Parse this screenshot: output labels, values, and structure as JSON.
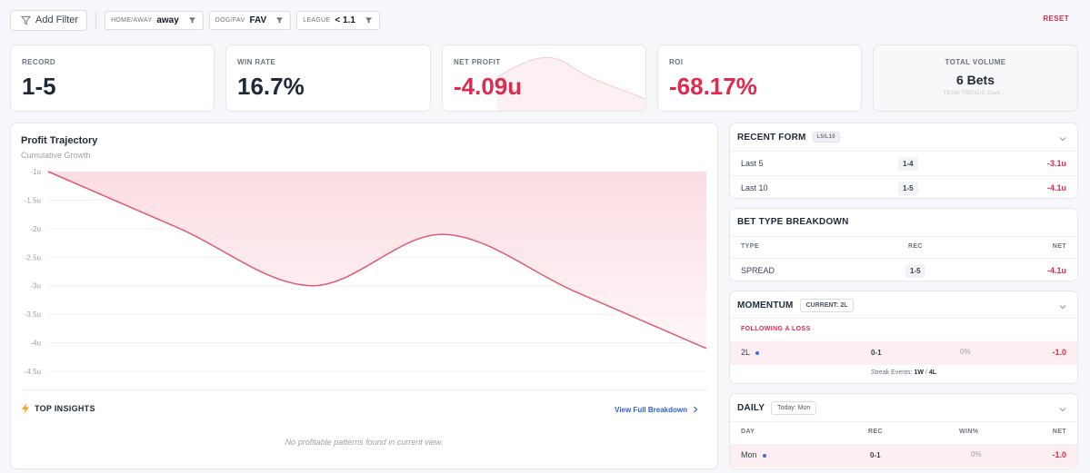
{
  "filters": {
    "add_label": "Add Filter",
    "chips": [
      {
        "key": "HOME/AWAY",
        "value": "away"
      },
      {
        "key": "DOG/FAV",
        "value": "FAV"
      },
      {
        "key": "LEAGUE",
        "value": "< 1.1"
      }
    ],
    "reset_label": "RESET"
  },
  "stats": {
    "record": {
      "label": "RECORD",
      "value": "1-5"
    },
    "win_rate": {
      "label": "WIN RATE",
      "value": "16.7%"
    },
    "net_profit": {
      "label": "NET PROFIT",
      "value": "-4.09u"
    },
    "roi": {
      "label": "ROI",
      "value": "-68.17%"
    },
    "volume": {
      "label": "TOTAL VOLUME",
      "value": "6 Bets",
      "sub": "TEAM TRENDS Cavs ..."
    }
  },
  "chart": {
    "title": "Profit Trajectory",
    "subtitle": "Cumulative Growth"
  },
  "chart_data": {
    "type": "area",
    "title": "Profit Trajectory",
    "subtitle": "Cumulative Growth",
    "y_ticks": [
      "-1u",
      "-1.5u",
      "-2u",
      "-2.5u",
      "-3u",
      "-3.5u",
      "-4u",
      "-4.5u"
    ],
    "ylim": [
      -4.5,
      -1
    ],
    "x": [
      0,
      1,
      2,
      3,
      4,
      5
    ],
    "values": [
      -1.0,
      -2.0,
      -3.0,
      -2.1,
      -3.1,
      -4.1
    ],
    "grid": true,
    "colors": {
      "line": "#e05a72",
      "fill": "#fbdde3"
    }
  },
  "insights": {
    "title": "TOP INSIGHTS",
    "link": "View Full Breakdown",
    "empty": "No profitable patterns found in current view."
  },
  "recent_form": {
    "title": "RECENT FORM",
    "badge": "L5/L10",
    "rows": [
      {
        "label": "Last 5",
        "record": "1-4",
        "net": "-3.1u"
      },
      {
        "label": "Last 10",
        "record": "1-5",
        "net": "-4.1u"
      }
    ]
  },
  "bet_type": {
    "title": "BET TYPE BREAKDOWN",
    "headers": {
      "type": "TYPE",
      "rec": "REC",
      "net": "NET"
    },
    "rows": [
      {
        "type": "SPREAD",
        "rec": "1-5",
        "net": "-4.1u"
      }
    ]
  },
  "momentum": {
    "title": "MOMENTUM",
    "badge": "CURRENT: 2L",
    "section": "FOLLOWING A LOSS",
    "row": {
      "label": "2L",
      "rec": "0-1",
      "pct": "0%",
      "net": "-1.0"
    },
    "streak_label": "Streak Events:",
    "streak_w": "1W",
    "streak_sep": "/",
    "streak_l": "4L"
  },
  "daily": {
    "title": "DAILY",
    "badge": "Today: Mon",
    "headers": {
      "day": "DAY",
      "rec": "REC",
      "win": "WIN%",
      "net": "NET"
    },
    "row": {
      "day": "Mon",
      "rec": "0-1",
      "win": "0%",
      "net": "-1.0"
    }
  },
  "colors": {
    "accent_red": "#e0294e",
    "link_blue": "#2f5fd1",
    "dot_blue": "#3b6fe0"
  }
}
